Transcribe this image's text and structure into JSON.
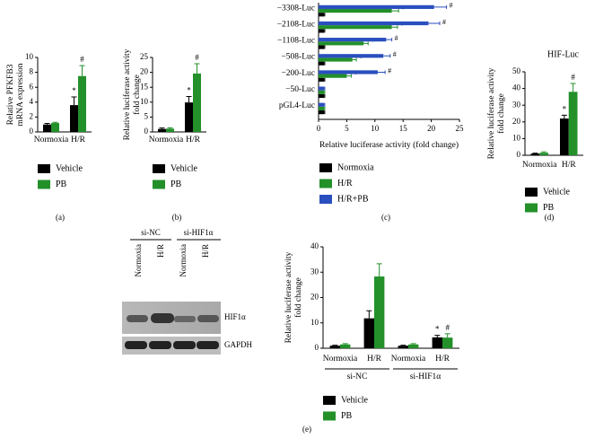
{
  "chart_data": [
    {
      "type": "bar",
      "panel_label": "(a)",
      "ylabel": [
        "Relative PFKFB3",
        "mRNA expression"
      ],
      "categories": [
        "Normoxia",
        "H/R"
      ],
      "ylim": [
        0,
        10
      ],
      "yticks": [
        0,
        2,
        4,
        6,
        8,
        10
      ],
      "series": [
        {
          "name": "Vehicle",
          "color": "#000000",
          "values": [
            1.0,
            3.6
          ],
          "errors": [
            0.15,
            1.1
          ],
          "significance": [
            null,
            "*"
          ]
        },
        {
          "name": "PB",
          "color": "#23902a",
          "values": [
            1.2,
            7.5
          ],
          "errors": [
            0.1,
            1.4
          ],
          "significance": [
            null,
            "#"
          ]
        }
      ]
    },
    {
      "type": "bar",
      "panel_label": "(b)",
      "ylabel": [
        "Relative luciferase activity",
        "fold change"
      ],
      "categories": [
        "Normoxia",
        "H/R"
      ],
      "ylim": [
        0,
        25
      ],
      "yticks": [
        0,
        5,
        10,
        15,
        20,
        25
      ],
      "series": [
        {
          "name": "Vehicle",
          "color": "#000000",
          "values": [
            1.0,
            9.9
          ],
          "errors": [
            0.3,
            2.0
          ],
          "significance": [
            null,
            "*"
          ]
        },
        {
          "name": "PB",
          "color": "#23902a",
          "values": [
            1.1,
            19.6
          ],
          "errors": [
            0.3,
            3.3
          ],
          "significance": [
            null,
            "#"
          ]
        }
      ]
    },
    {
      "type": "barh",
      "panel_label": "(c)",
      "xlabel": "Relative luciferase activity (fold change)",
      "categories": [
        "−3308-Luc",
        "−2108-Luc",
        "−1108-Luc",
        "−508-Luc",
        "−200-Luc",
        "−50-Luc",
        "pGL4-Luc"
      ],
      "xlim": [
        0,
        25
      ],
      "xticks": [
        0,
        5,
        10,
        15,
        20,
        25
      ],
      "series": [
        {
          "name": "Normoxia",
          "color": "#000000",
          "values": [
            1,
            1,
            1,
            1,
            1,
            1,
            1
          ],
          "errors": [
            0.1,
            0.1,
            0.1,
            0.1,
            0.1,
            0.1,
            0.1
          ],
          "significance": [
            null,
            null,
            null,
            null,
            null,
            null,
            null
          ]
        },
        {
          "name": "H/R",
          "color": "#23902a",
          "values": [
            13,
            13,
            8,
            6,
            5,
            1,
            1
          ],
          "errors": [
            1.2,
            1.0,
            0.8,
            0.7,
            0.8,
            0.1,
            0.1
          ],
          "significance": [
            "*",
            "*",
            "*",
            "*",
            "*",
            null,
            null
          ]
        },
        {
          "name": "H/R+PB",
          "color": "#2a4fbf",
          "values": [
            20.5,
            19.5,
            12,
            11.5,
            10.5,
            1,
            1
          ],
          "errors": [
            2.2,
            2.0,
            1.0,
            1.2,
            1.3,
            0.1,
            0.1
          ],
          "significance": [
            "#",
            "#",
            "#",
            "#",
            "#",
            null,
            null
          ]
        }
      ]
    },
    {
      "type": "bar",
      "panel_label": "(d)",
      "title": "HIF-Luc",
      "ylabel": [
        "Relative luciferase activity",
        "fold change"
      ],
      "categories": [
        "Normoxia",
        "H/R"
      ],
      "ylim": [
        0,
        50
      ],
      "yticks": [
        0,
        10,
        20,
        30,
        40,
        50
      ],
      "series": [
        {
          "name": "Vehicle",
          "color": "#000000",
          "values": [
            1.0,
            22
          ],
          "errors": [
            0.3,
            2.0
          ],
          "significance": [
            null,
            "*"
          ]
        },
        {
          "name": "PB",
          "color": "#23902a",
          "values": [
            1.5,
            38
          ],
          "errors": [
            0.5,
            5
          ],
          "significance": [
            null,
            "#"
          ]
        }
      ]
    },
    {
      "type": "bar",
      "panel_label": "(e)",
      "ylabel": [
        "Relative luciferase activity",
        "fold change"
      ],
      "categories": [
        "Normoxia",
        "H/R",
        "Normoxia",
        "H/R"
      ],
      "groups": [
        "si-NC",
        "si-HIF1α"
      ],
      "ylim": [
        0,
        40
      ],
      "yticks": [
        0,
        10,
        20,
        30,
        40
      ],
      "series": [
        {
          "name": "Vehicle",
          "color": "#000000",
          "values": [
            1.0,
            11.8,
            1.0,
            4.3
          ],
          "errors": [
            0.2,
            3.0,
            0.2,
            0.8
          ],
          "significance": [
            null,
            null,
            null,
            "*"
          ]
        },
        {
          "name": "PB",
          "color": "#23902a",
          "values": [
            1.5,
            28.3,
            1.5,
            4.2
          ],
          "errors": [
            0.3,
            5.0,
            0.3,
            1.5
          ],
          "significance": [
            null,
            null,
            null,
            "#"
          ]
        }
      ]
    }
  ],
  "blot": {
    "groups": [
      "si-NC",
      "si-HIF1α"
    ],
    "lanes": [
      "Normoxia",
      "H/R",
      "Normoxia",
      "H/R"
    ],
    "bands": [
      "HIF1α",
      "GAPDH"
    ]
  }
}
